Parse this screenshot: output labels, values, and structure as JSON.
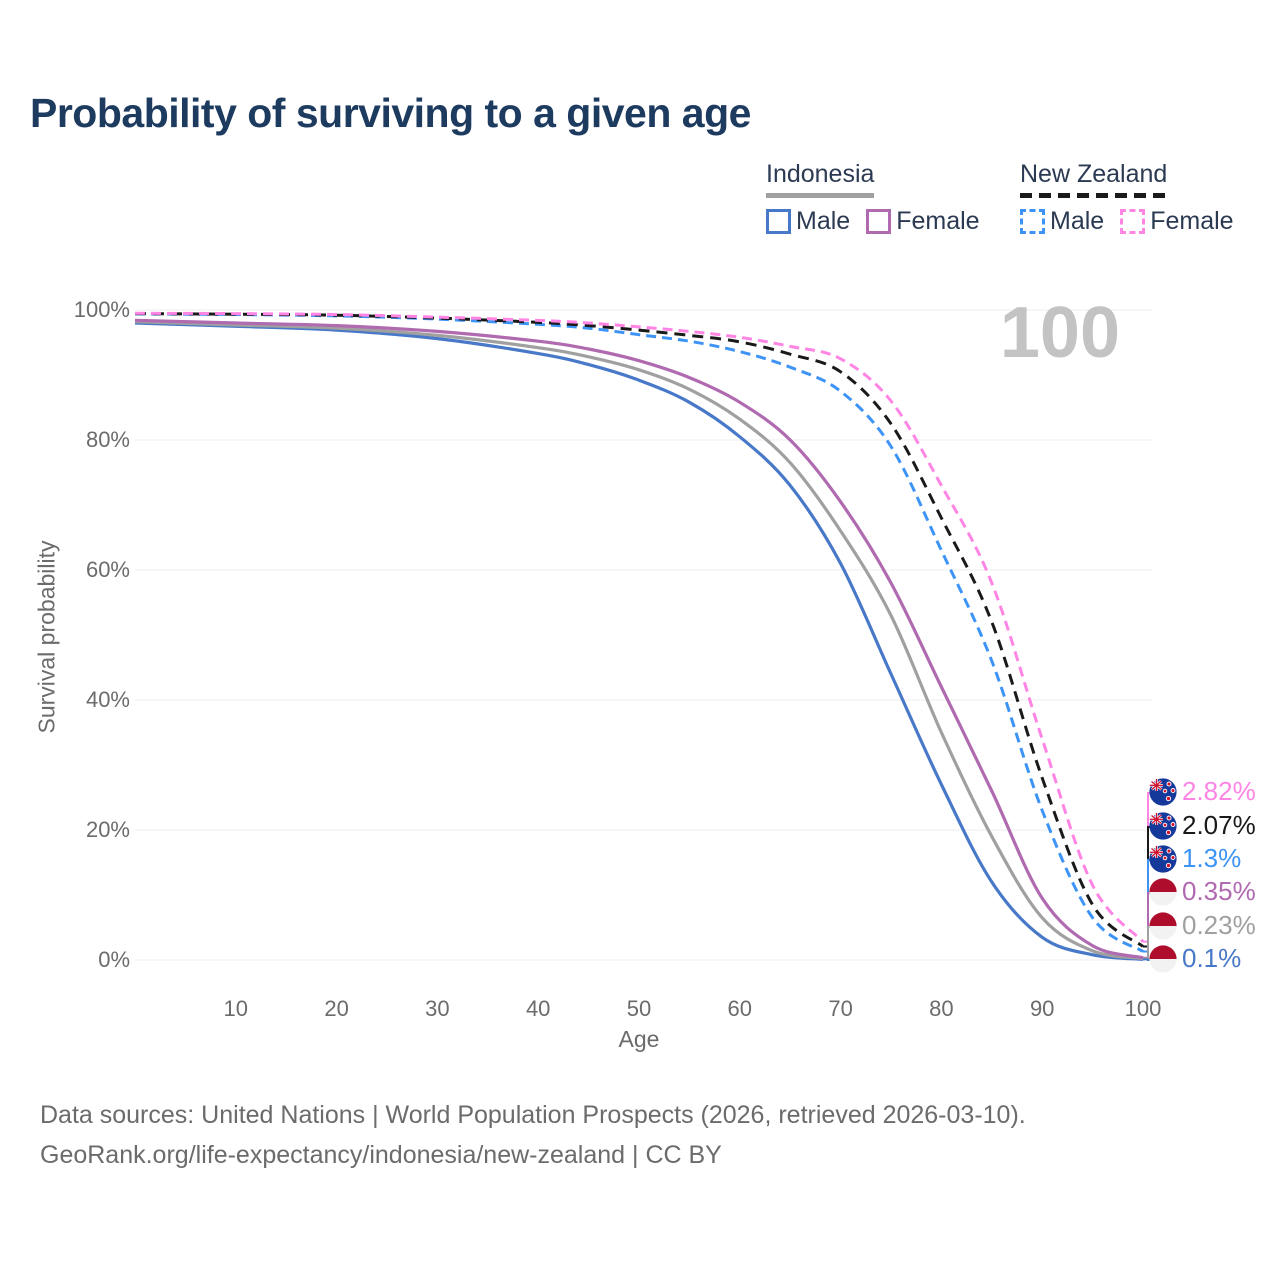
{
  "title": "Probability of surviving to a given age",
  "watermark": "100",
  "legend": {
    "groups": [
      {
        "id": "indonesia",
        "label": "Indonesia",
        "line_style": "solid",
        "line_color": "#a0a0a0",
        "items": [
          {
            "label": "Male",
            "swatch_color": "#4878c8",
            "swatch_style": "solid"
          },
          {
            "label": "Female",
            "swatch_color": "#b06ab0",
            "swatch_style": "solid"
          }
        ]
      },
      {
        "id": "new-zealand",
        "label": "New Zealand",
        "line_style": "dashed",
        "line_color": "#1a1a1a",
        "items": [
          {
            "label": "Male",
            "swatch_color": "#3d94f6",
            "swatch_style": "dashed"
          },
          {
            "label": "Female",
            "swatch_color": "#ff85e5",
            "swatch_style": "dashed"
          }
        ]
      }
    ]
  },
  "axes": {
    "y_label": "Survival probability",
    "x_label": "Age",
    "y_ticks": [
      {
        "label": "100%",
        "value": 100
      },
      {
        "label": "80%",
        "value": 80
      },
      {
        "label": "60%",
        "value": 60
      },
      {
        "label": "40%",
        "value": 40
      },
      {
        "label": "20%",
        "value": 20
      },
      {
        "label": "0%",
        "value": 0
      }
    ],
    "x_ticks": [
      {
        "label": "10",
        "value": 10
      },
      {
        "label": "20",
        "value": 20
      },
      {
        "label": "30",
        "value": 30
      },
      {
        "label": "40",
        "value": 40
      },
      {
        "label": "50",
        "value": 50
      },
      {
        "label": "60",
        "value": 60
      },
      {
        "label": "70",
        "value": 70
      },
      {
        "label": "80",
        "value": 80
      },
      {
        "label": "90",
        "value": 90
      },
      {
        "label": "100",
        "value": 100
      }
    ]
  },
  "annotations": [
    {
      "label": "2.82%",
      "value": 2.82,
      "series": "New Zealand Female",
      "flag": "new-zealand",
      "color": "#ff85e5"
    },
    {
      "label": "2.07%",
      "value": 2.07,
      "series": "New Zealand Total",
      "flag": "new-zealand",
      "color": "#1a1a1a"
    },
    {
      "label": "1.3%",
      "value": 1.3,
      "series": "New Zealand Male",
      "flag": "new-zealand",
      "color": "#3d94f6"
    },
    {
      "label": "0.35%",
      "value": 0.35,
      "series": "Indonesia Female",
      "flag": "indonesia",
      "color": "#b06ab0"
    },
    {
      "label": "0.23%",
      "value": 0.23,
      "series": "Indonesia Total",
      "flag": "indonesia",
      "color": "#a0a0a0"
    },
    {
      "label": "0.1%",
      "value": 0.1,
      "series": "Indonesia Male",
      "flag": "indonesia",
      "color": "#4878c8"
    }
  ],
  "footer": {
    "line1": "Data sources: United Nations | World Population Prospects (2026, retrieved 2026-03-10).",
    "line2": "GeoRank.org/life-expectancy/indonesia/new-zealand | CC BY"
  },
  "chart_data": {
    "type": "line",
    "title": "Probability of surviving to a given age",
    "xlabel": "Age",
    "ylabel": "Survival probability",
    "xlim": [
      0,
      100
    ],
    "ylim": [
      0,
      100
    ],
    "grid": true,
    "legend_position": "top-right",
    "x": [
      0,
      10,
      20,
      30,
      40,
      45,
      50,
      55,
      60,
      65,
      70,
      75,
      80,
      85,
      90,
      95,
      100
    ],
    "series": [
      {
        "name": "Indonesia Male",
        "color": "#4878c8",
        "dash": "solid",
        "values": [
          98.0,
          97.5,
          96.9,
          95.6,
          93.3,
          91.6,
          89.2,
          85.8,
          80.5,
          73.0,
          61.0,
          44.0,
          27.0,
          12.0,
          3.5,
          0.8,
          0.1
        ]
      },
      {
        "name": "Indonesia Total",
        "color": "#a0a0a0",
        "dash": "solid",
        "values": [
          98.2,
          97.7,
          97.2,
          96.1,
          94.2,
          92.8,
          90.8,
          87.8,
          83.2,
          76.5,
          66.0,
          53.0,
          35.0,
          19.0,
          6.5,
          1.4,
          0.23
        ]
      },
      {
        "name": "Indonesia Female",
        "color": "#b06ab0",
        "dash": "solid",
        "values": [
          98.4,
          98.0,
          97.6,
          96.7,
          95.2,
          94.0,
          92.2,
          89.6,
          85.8,
          80.0,
          70.5,
          58.0,
          42.0,
          26.0,
          9.5,
          2.2,
          0.35
        ]
      },
      {
        "name": "New Zealand Male",
        "color": "#3d94f6",
        "dash": "dashed",
        "values": [
          99.4,
          99.3,
          99.1,
          98.6,
          97.8,
          97.2,
          96.2,
          95.2,
          93.6,
          91.2,
          87.5,
          79.0,
          63.0,
          46.0,
          23.0,
          6.5,
          1.3
        ]
      },
      {
        "name": "New Zealand Total",
        "color": "#1a1a1a",
        "dash": "dashed",
        "values": [
          99.45,
          99.35,
          99.2,
          98.75,
          98.1,
          97.6,
          96.9,
          96.1,
          95.1,
          93.2,
          90.5,
          82.5,
          68.0,
          52.0,
          28.0,
          8.5,
          2.07
        ]
      },
      {
        "name": "New Zealand Female",
        "color": "#ff85e5",
        "dash": "dashed",
        "values": [
          99.5,
          99.45,
          99.3,
          98.9,
          98.4,
          98.0,
          97.4,
          96.7,
          95.8,
          94.4,
          92.5,
          86.0,
          73.0,
          58.0,
          34.0,
          11.5,
          2.82
        ]
      }
    ]
  }
}
